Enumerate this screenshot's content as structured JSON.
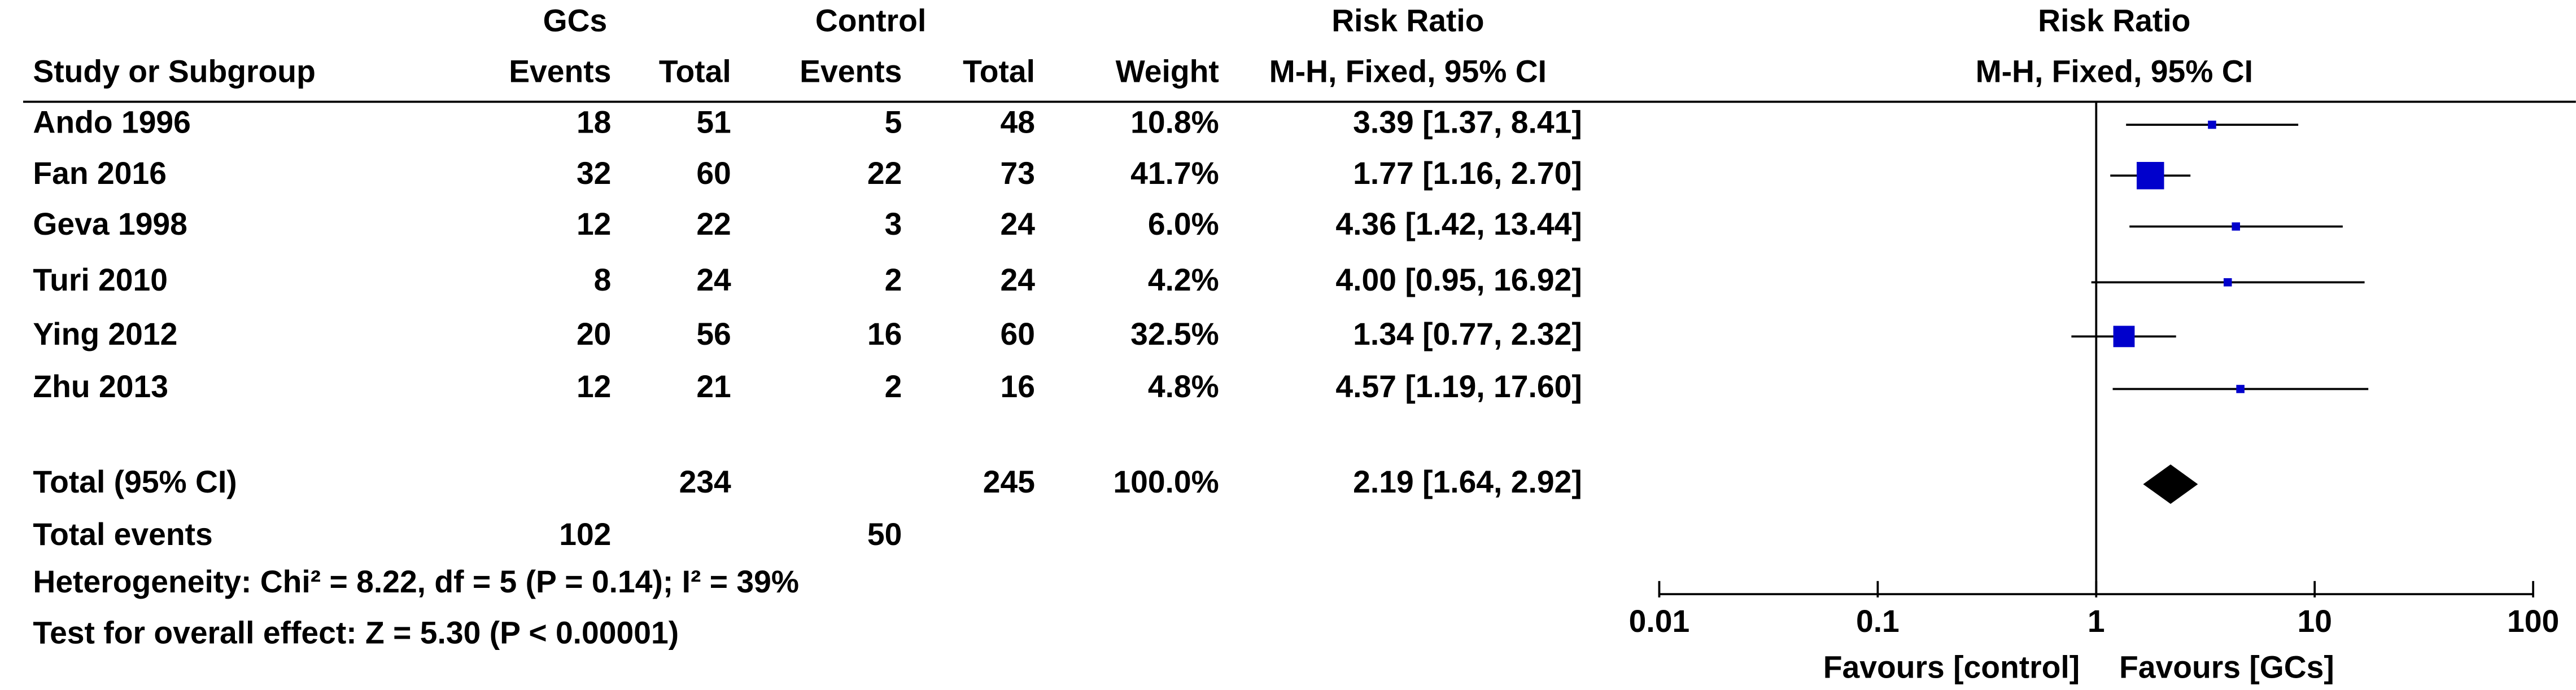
{
  "chart_data": {
    "type": "forest",
    "group_headers": {
      "experimental": "GCs",
      "control": "Control",
      "effect": "Risk Ratio"
    },
    "columns": {
      "study": "Study or Subgroup",
      "exp_events": "Events",
      "exp_total": "Total",
      "ctrl_events": "Events",
      "ctrl_total": "Total",
      "weight": "Weight",
      "effect": "M-H, Fixed, 95% CI"
    },
    "plot_title": "Risk Ratio",
    "plot_subtitle": "M-H, Fixed, 95% CI",
    "studies": [
      {
        "name": "Ando 1996",
        "exp_events": 18,
        "exp_total": 51,
        "ctrl_events": 5,
        "ctrl_total": 48,
        "weight": 10.8,
        "weight_label": "10.8%",
        "rr": 3.39,
        "ci": [
          1.37,
          8.41
        ],
        "rr_label": "3.39 [1.37, 8.41]"
      },
      {
        "name": "Fan 2016",
        "exp_events": 32,
        "exp_total": 60,
        "ctrl_events": 22,
        "ctrl_total": 73,
        "weight": 41.7,
        "weight_label": "41.7%",
        "rr": 1.77,
        "ci": [
          1.16,
          2.7
        ],
        "rr_label": "1.77 [1.16, 2.70]"
      },
      {
        "name": "Geva 1998",
        "exp_events": 12,
        "exp_total": 22,
        "ctrl_events": 3,
        "ctrl_total": 24,
        "weight": 6.0,
        "weight_label": "6.0%",
        "rr": 4.36,
        "ci": [
          1.42,
          13.44
        ],
        "rr_label": "4.36 [1.42, 13.44]"
      },
      {
        "name": "Turi 2010",
        "exp_events": 8,
        "exp_total": 24,
        "ctrl_events": 2,
        "ctrl_total": 24,
        "weight": 4.2,
        "weight_label": "4.2%",
        "rr": 4.0,
        "ci": [
          0.95,
          16.92
        ],
        "rr_label": "4.00 [0.95, 16.92]"
      },
      {
        "name": "Ying 2012",
        "exp_events": 20,
        "exp_total": 56,
        "ctrl_events": 16,
        "ctrl_total": 60,
        "weight": 32.5,
        "weight_label": "32.5%",
        "rr": 1.34,
        "ci": [
          0.77,
          2.32
        ],
        "rr_label": "1.34 [0.77, 2.32]"
      },
      {
        "name": "Zhu 2013",
        "exp_events": 12,
        "exp_total": 21,
        "ctrl_events": 2,
        "ctrl_total": 16,
        "weight": 4.8,
        "weight_label": "4.8%",
        "rr": 4.57,
        "ci": [
          1.19,
          17.6
        ],
        "rr_label": "4.57 [1.19, 17.60]"
      }
    ],
    "total": {
      "name": "Total (95% CI)",
      "exp_total": 234,
      "ctrl_total": 245,
      "weight": 100.0,
      "weight_label": "100.0%",
      "rr": 2.19,
      "ci": [
        1.64,
        2.92
      ],
      "rr_label": "2.19 [1.64, 2.92]"
    },
    "total_events": {
      "name": "Total events",
      "exp_events": 102,
      "ctrl_events": 50
    },
    "heterogeneity": "Heterogeneity: Chi² = 8.22, df = 5 (P = 0.14); I² = 39%",
    "overall_effect": "Test for overall effect: Z = 5.30 (P < 0.00001)",
    "xscale": "log",
    "xlim": [
      0.01,
      100
    ],
    "xticks": [
      0.01,
      0.1,
      1,
      10,
      100
    ],
    "favours_left": "Favours [control]",
    "favours_right": "Favours [GCs]",
    "square_color": "#0000cc",
    "diamond_color": "#000000"
  }
}
